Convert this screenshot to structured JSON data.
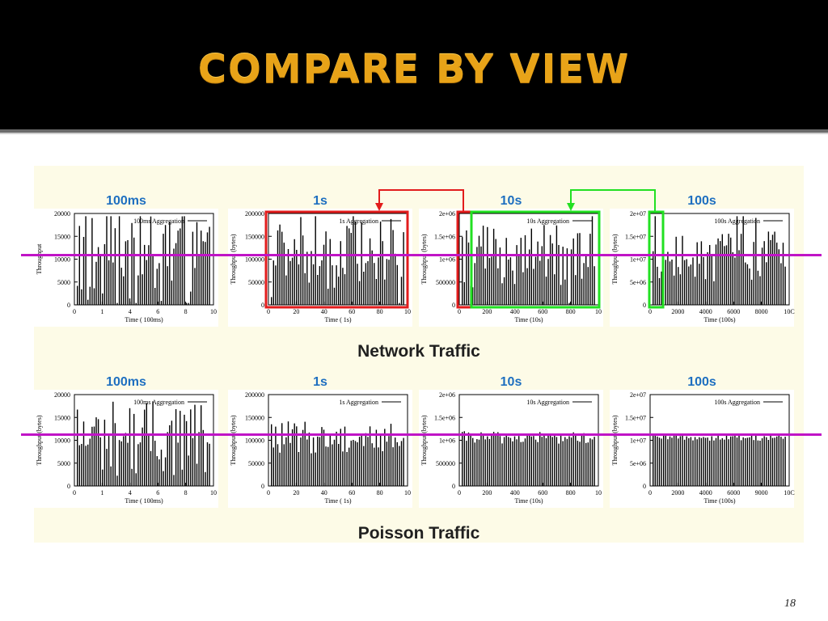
{
  "slide": {
    "title": "COMPARE BY VIEW",
    "page_number": "18"
  },
  "colors": {
    "title": "#e8a318",
    "column_label": "#1e6fc0",
    "highlight_red": "#e21c1c",
    "highlight_green": "#22e022",
    "guide_line": "#c014c6",
    "panel_bg": "#fdfbe7"
  },
  "chart_data": [
    {
      "type": "bar",
      "group": "Network Traffic",
      "timescale": "100ms",
      "legend": "100ms Aggregation",
      "xlabel": "Time ( 100ms)",
      "ylabel": "Throughput",
      "xticks": [
        "0",
        "1",
        "4",
        "6",
        "8",
        "10"
      ],
      "yticks": [
        "0",
        "5000",
        "10000",
        "15000",
        "20000"
      ],
      "ylim": [
        0,
        20000
      ]
    },
    {
      "type": "bar",
      "group": "Network Traffic",
      "timescale": "1s",
      "legend": "1s Aggregation",
      "xlabel": "Time ( 1s)",
      "ylabel": "Throughput (bytes)",
      "xticks": [
        "0",
        "20",
        "40",
        "60",
        "80",
        "10"
      ],
      "yticks": [
        "0",
        "50000",
        "100000",
        "150000",
        "200000"
      ],
      "ylim": [
        0,
        200000
      ]
    },
    {
      "type": "bar",
      "group": "Network Traffic",
      "timescale": "10s",
      "legend": "10s Aggregation",
      "xlabel": "Time (10s)",
      "ylabel": "Throughput (bytes)",
      "xticks": [
        "0",
        "200",
        "400",
        "600",
        "800",
        "10"
      ],
      "yticks": [
        "0",
        "500000",
        "1e+06",
        "1.5e+06",
        "2e+06"
      ],
      "ylim": [
        0,
        2000000
      ]
    },
    {
      "type": "bar",
      "group": "Network Traffic",
      "timescale": "100s",
      "legend": "100s Aggregation",
      "xlabel": "Time (100s)",
      "ylabel": "Throughput (bytes)",
      "xticks": [
        "0",
        "2000",
        "4000",
        "6000",
        "8000",
        "10C"
      ],
      "yticks": [
        "0",
        "5e+06",
        "1e+07",
        "1.5e+07",
        "2e+07"
      ],
      "ylim": [
        0,
        20000000
      ]
    },
    {
      "type": "bar",
      "group": "Poisson Traffic",
      "timescale": "100ms",
      "legend": "100ms Aggregation",
      "xlabel": "Time ( 100ms)",
      "ylabel": "Throughput (bytes)",
      "xticks": [
        "0",
        "1",
        "4",
        "6",
        "8",
        "10"
      ],
      "yticks": [
        "0",
        "5000",
        "10000",
        "15000",
        "20000"
      ],
      "ylim": [
        0,
        20000
      ]
    },
    {
      "type": "bar",
      "group": "Poisson Traffic",
      "timescale": "1s",
      "legend": "1s Aggregation",
      "xlabel": "Time ( 1s)",
      "ylabel": "Throughput (bytes)",
      "xticks": [
        "0",
        "20",
        "40",
        "60",
        "80",
        "10"
      ],
      "yticks": [
        "0",
        "50000",
        "100000",
        "150000",
        "200000"
      ],
      "ylim": [
        0,
        200000
      ]
    },
    {
      "type": "bar",
      "group": "Poisson Traffic",
      "timescale": "10s",
      "legend": "10s Aggregation",
      "xlabel": "Time (10s)",
      "ylabel": "Throughput (bytes)",
      "xticks": [
        "0",
        "200",
        "400",
        "600",
        "800",
        "10"
      ],
      "yticks": [
        "0",
        "500000",
        "1e+06",
        "1.5e+06",
        "2e+06"
      ],
      "ylim": [
        0,
        2000000
      ]
    },
    {
      "type": "bar",
      "group": "Poisson Traffic",
      "timescale": "100s",
      "legend": "100s Aggregation",
      "xlabel": "Time (100s)",
      "ylabel": "Throughput (bytes)",
      "xticks": [
        "0",
        "2000",
        "4000",
        "6000",
        "9000",
        "10C"
      ],
      "yticks": [
        "0",
        "5e+06",
        "1e+07",
        "1.5e+07",
        "2e+07"
      ],
      "ylim": [
        0,
        20000000
      ]
    }
  ],
  "rows": [
    {
      "caption": "Network Traffic",
      "columns": [
        "100ms",
        "1s",
        "10s",
        "100s"
      ]
    },
    {
      "caption": "Poisson Traffic",
      "columns": [
        "100ms",
        "1s",
        "10s",
        "100s"
      ]
    }
  ]
}
